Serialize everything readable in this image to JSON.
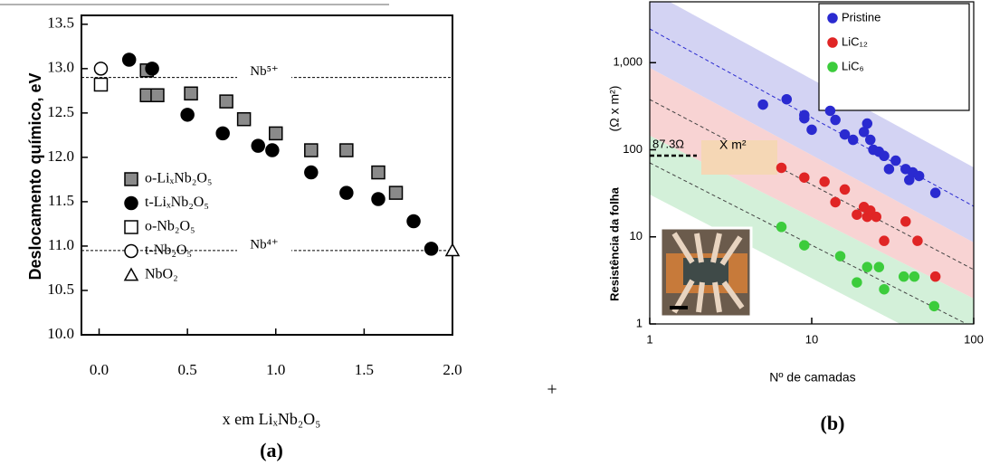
{
  "chart_data": [
    {
      "type": "scatter",
      "caption": "(a)",
      "x_label": "x em LiₓNb₂O₅",
      "y_label": "Deslocamento químico, eV",
      "xlim": [
        -0.1,
        2.0
      ],
      "ylim": [
        10,
        13.6
      ],
      "xticks": [
        {
          "value": 0,
          "label": "0.0"
        },
        {
          "value": 0.5,
          "label": "0.5"
        },
        {
          "value": 1,
          "label": "1.0"
        },
        {
          "value": 1.5,
          "label": "1.5"
        },
        {
          "value": 2,
          "label": "2.0"
        }
      ],
      "yticks": [
        {
          "value": 10,
          "label": "10.0"
        },
        10.5,
        {
          "value": 11,
          "label": "11.0"
        },
        11.5,
        {
          "value": 12,
          "label": "12.0"
        },
        12.5,
        {
          "value": 13,
          "label": "13.0"
        },
        13.5
      ],
      "reference_lines": [
        {
          "value": 12.9,
          "label": "Nb⁵⁺"
        },
        {
          "value": 10.95,
          "label": "Nb⁴⁺"
        }
      ],
      "series": [
        {
          "name": "o-LiₓNb₂O₅",
          "marker": "square",
          "color": "#8a8a8a",
          "x": [
            0.27,
            0.27,
            0.33,
            0.52,
            0.72,
            0.82,
            1.0,
            1.2,
            1.4,
            1.58,
            1.68
          ],
          "values": [
            12.98,
            12.7,
            12.7,
            12.72,
            12.63,
            12.43,
            12.27,
            12.08,
            12.08,
            11.83,
            11.6
          ]
        },
        {
          "name": "t-LiₓNb₂O₅",
          "marker": "circle",
          "color": "#000000",
          "x": [
            0.17,
            0.3,
            0.5,
            0.7,
            0.9,
            0.98,
            1.2,
            1.4,
            1.58,
            1.78,
            1.88
          ],
          "values": [
            13.1,
            13.0,
            12.48,
            12.27,
            12.13,
            12.08,
            11.83,
            11.6,
            11.53,
            11.28,
            10.97
          ]
        },
        {
          "name": "o-Nb₂O₅",
          "marker": "square",
          "color": "#ffffff",
          "x": [
            0.01
          ],
          "values": [
            12.82
          ]
        },
        {
          "name": "t-Nb₂O₅",
          "marker": "circle",
          "color": "#ffffff",
          "x": [
            0.01
          ],
          "values": [
            13.0
          ]
        },
        {
          "name": "NbO₂",
          "marker": "triangle",
          "color": "#ffffff",
          "x": [
            2.0
          ],
          "values": [
            10.95
          ]
        }
      ]
    },
    {
      "type": "scatter",
      "caption": "(b)",
      "x_label": "Nº de camadas",
      "y_label": "Resistência da folha",
      "y_unit": "(Ω x m²)",
      "log_x": true,
      "log_y": true,
      "xlim": [
        1,
        100
      ],
      "ylim": [
        1,
        5000
      ],
      "xticks": [
        1,
        10,
        100
      ],
      "yticks": [
        1,
        10,
        100,
        {
          "value": 1000,
          "label": "1,000"
        }
      ],
      "annotations": [
        "87.3Ω",
        "X m²"
      ],
      "series": [
        {
          "name": "Pristine",
          "marker": "circle",
          "color": "#2a2ad0",
          "x": [
            5,
            7,
            9,
            9,
            10,
            13,
            14,
            16,
            18,
            21,
            22,
            23,
            24,
            26,
            28,
            30,
            33,
            38,
            40,
            42,
            46,
            58
          ],
          "values": [
            330,
            380,
            230,
            250,
            170,
            280,
            220,
            150,
            130,
            160,
            200,
            130,
            100,
            95,
            85,
            60,
            75,
            60,
            45,
            55,
            50,
            32
          ]
        },
        {
          "name": "LiC₁₂",
          "marker": "circle",
          "color": "#e02525",
          "x": [
            6.5,
            9,
            12,
            14,
            16,
            19,
            21,
            22,
            23,
            25,
            28,
            38,
            45,
            58
          ],
          "values": [
            62,
            48,
            43,
            25,
            35,
            18,
            22,
            17,
            20,
            17,
            9,
            15,
            9,
            3.5
          ]
        },
        {
          "name": "LiC₆",
          "marker": "circle",
          "color": "#3ccc3c",
          "x": [
            6.5,
            9,
            15,
            19,
            22,
            26,
            28,
            37,
            43,
            57
          ],
          "values": [
            13,
            8,
            6,
            3,
            4.5,
            4.5,
            2.5,
            3.5,
            3.5,
            1.6
          ]
        }
      ]
    }
  ]
}
